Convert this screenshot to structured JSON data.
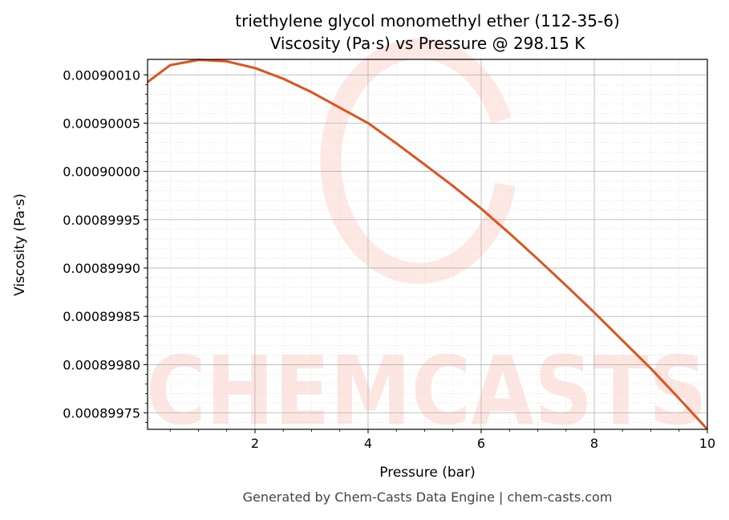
{
  "chart_data": {
    "type": "line",
    "title": "triethylene glycol monomethyl ether (112-35-6)",
    "subtitle": "Viscosity (Pa·s) vs Pressure @ 298.15 K",
    "xlabel": "Pressure (bar)",
    "ylabel": "Viscosity (Pa·s)",
    "xlim": [
      0.1,
      10
    ],
    "ylim": [
      0.000899733,
      0.000900116
    ],
    "xticks": [
      2,
      4,
      6,
      8,
      10
    ],
    "xtick_labels": [
      "2",
      "4",
      "6",
      "8",
      "10"
    ],
    "yticks": [
      0.0009001,
      0.00090005,
      0.0009,
      0.00089995,
      0.0008999,
      0.00089985,
      0.0008998,
      0.00089975
    ],
    "ytick_labels": [
      "0.00090010",
      "0.00090005",
      "0.00090000",
      "0.00089995",
      "0.00089990",
      "0.00089985",
      "0.00089980",
      "0.00089975"
    ],
    "grid": true,
    "series": [
      {
        "name": "Viscosity",
        "color": "#e0521e",
        "x": [
          0.1,
          0.5,
          1.0,
          1.5,
          2.0,
          2.5,
          3.0,
          3.5,
          4.0,
          4.5,
          5.0,
          5.5,
          6.0,
          6.5,
          7.0,
          7.5,
          8.0,
          8.5,
          9.0,
          9.5,
          10.0
        ],
        "y": [
          0.0009000925,
          0.00090011,
          0.0009001155,
          0.000900114,
          0.000900107,
          0.000900096,
          0.000900082,
          0.000900066,
          0.00090005,
          0.000900029,
          0.0009000071,
          0.000899985,
          0.0008999615,
          0.000899936,
          0.0008999093,
          0.000899882,
          0.000899854,
          0.000899825,
          0.000899796,
          0.000899765,
          0.000899733
        ]
      }
    ],
    "watermark": "CHEMCASTS"
  },
  "footer": "Generated by Chem-Casts Data Engine | chem-casts.com"
}
